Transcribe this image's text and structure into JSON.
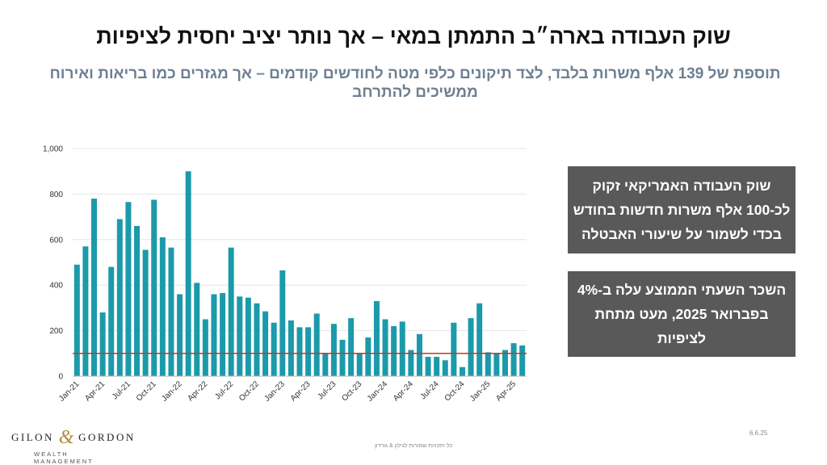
{
  "title": "שוק העבודה בארה״ב התמתן במאי – אך נותר יציב יחסית לציפיות",
  "subtitle": "תוספת של 139 אלף משרות בלבד, לצד תיקונים כלפי מטה לחודשים קודמים – אך מגזרים כמו בריאות ואירוח ממשיכים להתרחב",
  "callouts": {
    "box1": "שוק העבודה האמריקאי זקוק לכ-100 אלף משרות חדשות בחודש בכדי לשמור על שיעורי האבטלה",
    "box2": "השכר השעתי הממוצע עלה ב-4% בפברואר 2025, מעט מתחת לציפיות"
  },
  "logo": {
    "left": "GILON",
    "amp": "&",
    "right": "GORDON",
    "sub": "WEALTH MANAGEMENT"
  },
  "date": "6.6.25",
  "footer": "כל הזכויות שמורות לגילון & גורדון",
  "colors": {
    "bar": "#1b9aaa",
    "reference_line": "#c0392b",
    "callout_bg": "#595959",
    "subtitle": "#6e7f91"
  },
  "chart_data": {
    "type": "bar",
    "x_tick_labels": [
      "Jan-21",
      "Apr-21",
      "Jul-21",
      "Oct-21",
      "Jan-22",
      "Apr-22",
      "Jul-22",
      "Oct-22",
      "Jan-23",
      "Apr-23",
      "Jul-23",
      "Oct-23",
      "Jan-24",
      "Apr-24",
      "Jul-24",
      "Oct-24",
      "Jan-25",
      "Apr-25"
    ],
    "y_ticks": [
      "0",
      "200",
      "400",
      "600",
      "800",
      "1,000"
    ],
    "ylim": [
      0,
      1000
    ],
    "reference_line": 100,
    "grid": true,
    "values": [
      490,
      570,
      780,
      280,
      480,
      690,
      765,
      660,
      555,
      775,
      610,
      565,
      360,
      900,
      410,
      250,
      360,
      365,
      565,
      350,
      345,
      320,
      285,
      235,
      465,
      245,
      215,
      215,
      275,
      100,
      230,
      160,
      255,
      100,
      170,
      330,
      250,
      220,
      240,
      115,
      185,
      85,
      85,
      70,
      235,
      40,
      255,
      320,
      105,
      100,
      115,
      145,
      135
    ]
  }
}
